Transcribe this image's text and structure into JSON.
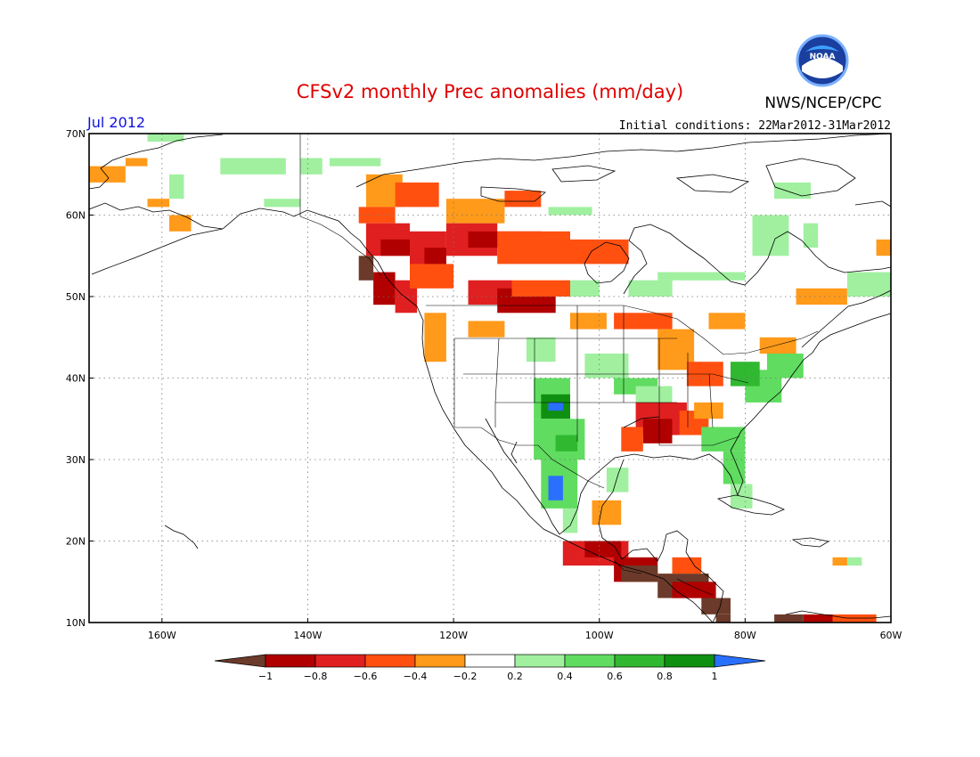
{
  "header": {
    "title": "CFSv2 monthly Prec anomalies (mm/day)",
    "org": "NWS/NCEP/CPC",
    "month": "Jul 2012",
    "initial_conditions": "Initial conditions: 22Mar2012-31Mar2012",
    "logo_text": "NOAA"
  },
  "map": {
    "lon_range": [
      -170,
      -60
    ],
    "lat_range": [
      10,
      70
    ],
    "lat_ticks": [
      {
        "value": 70,
        "label": "70N"
      },
      {
        "value": 60,
        "label": "60N"
      },
      {
        "value": 50,
        "label": "50N"
      },
      {
        "value": 40,
        "label": "40N"
      },
      {
        "value": 30,
        "label": "30N"
      },
      {
        "value": 20,
        "label": "20N"
      },
      {
        "value": 10,
        "label": "10N"
      }
    ],
    "lon_ticks": [
      {
        "value": -160,
        "label": "160W"
      },
      {
        "value": -140,
        "label": "140W"
      },
      {
        "value": -120,
        "label": "120W"
      },
      {
        "value": -100,
        "label": "100W"
      },
      {
        "value": -80,
        "label": "80W"
      },
      {
        "value": -60,
        "label": "60W"
      }
    ],
    "grid": "dotted",
    "land_color": "#ffffff",
    "ocean_color": "#ffffff"
  },
  "colorbar": {
    "labels": [
      "−1",
      "−0.8",
      "−0.6",
      "−0.4",
      "−0.2",
      "0.2",
      "0.4",
      "0.6",
      "0.8",
      "1"
    ],
    "colors": [
      "#6b3a2a",
      "#b00000",
      "#e02020",
      "#ff5010",
      "#ff9a1a",
      "#ffffff",
      "#a0f0a0",
      "#60dc60",
      "#30b830",
      "#109010",
      "#2a70ff"
    ]
  },
  "chart_data": {
    "type": "heatmap",
    "title": "CFSv2 monthly Prec anomalies (mm/day)",
    "units": "mm/day",
    "valid_month": "Jul 2012",
    "xlim": [
      -170,
      -60
    ],
    "ylim": [
      10,
      70
    ],
    "category_values": [
      -1.1,
      -0.9,
      -0.7,
      -0.5,
      -0.3,
      0.0,
      0.3,
      0.5,
      0.7,
      0.9,
      1.1
    ],
    "regions": [
      {
        "lon": [
          -170,
          -165
        ],
        "lat": [
          64,
          66
        ],
        "value": -0.3
      },
      {
        "lon": [
          -165,
          -162
        ],
        "lat": [
          66,
          67
        ],
        "value": -0.3
      },
      {
        "lon": [
          -159,
          -157
        ],
        "lat": [
          62,
          65
        ],
        "value": 0.3
      },
      {
        "lon": [
          -162,
          -157
        ],
        "lat": [
          69,
          70
        ],
        "value": 0.3
      },
      {
        "lon": [
          -152,
          -143
        ],
        "lat": [
          65,
          67
        ],
        "value": 0.3
      },
      {
        "lon": [
          -146,
          -141
        ],
        "lat": [
          61,
          62
        ],
        "value": 0.3
      },
      {
        "lon": [
          -162,
          -159
        ],
        "lat": [
          61,
          62
        ],
        "value": -0.3
      },
      {
        "lon": [
          -159,
          -156
        ],
        "lat": [
          58,
          60
        ],
        "value": -0.3
      },
      {
        "lon": [
          -141,
          -138
        ],
        "lat": [
          65,
          67
        ],
        "value": 0.3
      },
      {
        "lon": [
          -137,
          -130
        ],
        "lat": [
          66,
          67
        ],
        "value": 0.3
      },
      {
        "lon": [
          -132,
          -127
        ],
        "lat": [
          61,
          65
        ],
        "value": -0.3
      },
      {
        "lon": [
          -128,
          -122
        ],
        "lat": [
          61,
          64
        ],
        "value": -0.5
      },
      {
        "lon": [
          -133,
          -128
        ],
        "lat": [
          59,
          61
        ],
        "value": -0.5
      },
      {
        "lon": [
          -121,
          -113
        ],
        "lat": [
          59,
          62
        ],
        "value": -0.3
      },
      {
        "lon": [
          -113,
          -108
        ],
        "lat": [
          61,
          63
        ],
        "value": -0.5
      },
      {
        "lon": [
          -107,
          -101
        ],
        "lat": [
          60,
          61
        ],
        "value": 0.3
      },
      {
        "lon": [
          -132,
          -126
        ],
        "lat": [
          55,
          59
        ],
        "value": -0.7
      },
      {
        "lon": [
          -130,
          -126
        ],
        "lat": [
          55,
          57
        ],
        "value": -0.9
      },
      {
        "lon": [
          -126,
          -121
        ],
        "lat": [
          53,
          58
        ],
        "value": -0.7
      },
      {
        "lon": [
          -124,
          -121
        ],
        "lat": [
          53,
          56
        ],
        "value": -0.9
      },
      {
        "lon": [
          -121,
          -114
        ],
        "lat": [
          55,
          59
        ],
        "value": -0.7
      },
      {
        "lon": [
          -118,
          -108
        ],
        "lat": [
          56,
          58
        ],
        "value": -0.9
      },
      {
        "lon": [
          -114,
          -104
        ],
        "lat": [
          54,
          58
        ],
        "value": -0.5
      },
      {
        "lon": [
          -104,
          -96
        ],
        "lat": [
          54,
          57
        ],
        "value": -0.5
      },
      {
        "lon": [
          -133,
          -131
        ],
        "lat": [
          52,
          55
        ],
        "value": -1.1
      },
      {
        "lon": [
          -131,
          -128
        ],
        "lat": [
          49,
          53
        ],
        "value": -0.9
      },
      {
        "lon": [
          -128,
          -125
        ],
        "lat": [
          48,
          52
        ],
        "value": -0.7
      },
      {
        "lon": [
          -126,
          -120
        ],
        "lat": [
          51,
          54
        ],
        "value": -0.5
      },
      {
        "lon": [
          -118,
          -112
        ],
        "lat": [
          49,
          52
        ],
        "value": -0.7
      },
      {
        "lon": [
          -114,
          -106
        ],
        "lat": [
          48,
          51
        ],
        "value": -0.9
      },
      {
        "lon": [
          -112,
          -104
        ],
        "lat": [
          50,
          52
        ],
        "value": -0.5
      },
      {
        "lon": [
          -104,
          -100
        ],
        "lat": [
          50,
          52
        ],
        "value": 0.3
      },
      {
        "lon": [
          -96,
          -90
        ],
        "lat": [
          50,
          52
        ],
        "value": 0.3
      },
      {
        "lon": [
          -92,
          -80
        ],
        "lat": [
          52,
          53
        ],
        "value": 0.3
      },
      {
        "lon": [
          -79,
          -74
        ],
        "lat": [
          55,
          60
        ],
        "value": 0.3
      },
      {
        "lon": [
          -72,
          -70
        ],
        "lat": [
          56,
          59
        ],
        "value": 0.3
      },
      {
        "lon": [
          -73,
          -66
        ],
        "lat": [
          49,
          51
        ],
        "value": -0.3
      },
      {
        "lon": [
          -66,
          -60
        ],
        "lat": [
          50,
          53
        ],
        "value": 0.3
      },
      {
        "lon": [
          -62,
          -60
        ],
        "lat": [
          55,
          57
        ],
        "value": -0.3
      },
      {
        "lon": [
          -76,
          -71
        ],
        "lat": [
          62,
          64
        ],
        "value": 0.3
      },
      {
        "lon": [
          -124,
          -121
        ],
        "lat": [
          42,
          48
        ],
        "value": -0.3
      },
      {
        "lon": [
          -118,
          -113
        ],
        "lat": [
          45,
          47
        ],
        "value": -0.3
      },
      {
        "lon": [
          -104,
          -99
        ],
        "lat": [
          46,
          48
        ],
        "value": -0.3
      },
      {
        "lon": [
          -98,
          -90
        ],
        "lat": [
          46,
          48
        ],
        "value": -0.5
      },
      {
        "lon": [
          -92,
          -87
        ],
        "lat": [
          41,
          46
        ],
        "value": -0.3
      },
      {
        "lon": [
          -88,
          -83
        ],
        "lat": [
          39,
          42
        ],
        "value": -0.5
      },
      {
        "lon": [
          -85,
          -80
        ],
        "lat": [
          46,
          48
        ],
        "value": -0.3
      },
      {
        "lon": [
          -78,
          -73
        ],
        "lat": [
          43,
          45
        ],
        "value": -0.3
      },
      {
        "lon": [
          -110,
          -106
        ],
        "lat": [
          42,
          45
        ],
        "value": 0.3
      },
      {
        "lon": [
          -102,
          -96
        ],
        "lat": [
          40,
          43
        ],
        "value": 0.3
      },
      {
        "lon": [
          -98,
          -92
        ],
        "lat": [
          38,
          40
        ],
        "value": 0.5
      },
      {
        "lon": [
          -95,
          -90
        ],
        "lat": [
          36,
          39
        ],
        "value": 0.3
      },
      {
        "lon": [
          -109,
          -104
        ],
        "lat": [
          35,
          40
        ],
        "value": 0.5
      },
      {
        "lon": [
          -108,
          -104
        ],
        "lat": [
          35,
          38
        ],
        "value": 0.9
      },
      {
        "lon": [
          -107,
          -105
        ],
        "lat": [
          36,
          37
        ],
        "value": 1.1
      },
      {
        "lon": [
          -109,
          -102
        ],
        "lat": [
          30,
          35
        ],
        "value": 0.5
      },
      {
        "lon": [
          -106,
          -103
        ],
        "lat": [
          31,
          33
        ],
        "value": 0.7
      },
      {
        "lon": [
          -108,
          -103
        ],
        "lat": [
          24,
          30
        ],
        "value": 0.5
      },
      {
        "lon": [
          -107,
          -105
        ],
        "lat": [
          25,
          28
        ],
        "value": 1.1
      },
      {
        "lon": [
          -105,
          -103
        ],
        "lat": [
          21,
          24
        ],
        "value": 0.3
      },
      {
        "lon": [
          -95,
          -88
        ],
        "lat": [
          33,
          37
        ],
        "value": -0.7
      },
      {
        "lon": [
          -94,
          -90
        ],
        "lat": [
          32,
          35
        ],
        "value": -0.9
      },
      {
        "lon": [
          -97,
          -94
        ],
        "lat": [
          31,
          34
        ],
        "value": -0.5
      },
      {
        "lon": [
          -89,
          -85
        ],
        "lat": [
          33,
          36
        ],
        "value": -0.5
      },
      {
        "lon": [
          -87,
          -83
        ],
        "lat": [
          35,
          37
        ],
        "value": -0.3
      },
      {
        "lon": [
          -86,
          -80
        ],
        "lat": [
          31,
          34
        ],
        "value": 0.5
      },
      {
        "lon": [
          -83,
          -80
        ],
        "lat": [
          27,
          31
        ],
        "value": 0.5
      },
      {
        "lon": [
          -82,
          -79
        ],
        "lat": [
          24,
          27
        ],
        "value": 0.3
      },
      {
        "lon": [
          -80,
          -75
        ],
        "lat": [
          37,
          41
        ],
        "value": 0.5
      },
      {
        "lon": [
          -82,
          -78
        ],
        "lat": [
          39,
          42
        ],
        "value": 0.7
      },
      {
        "lon": [
          -77,
          -72
        ],
        "lat": [
          40,
          43
        ],
        "value": 0.5
      },
      {
        "lon": [
          -101,
          -97
        ],
        "lat": [
          22,
          25
        ],
        "value": -0.3
      },
      {
        "lon": [
          -99,
          -96
        ],
        "lat": [
          26,
          29
        ],
        "value": 0.3
      },
      {
        "lon": [
          -105,
          -96
        ],
        "lat": [
          17,
          20
        ],
        "value": -0.7
      },
      {
        "lon": [
          -102,
          -97
        ],
        "lat": [
          18,
          20
        ],
        "value": -0.9
      },
      {
        "lon": [
          -98,
          -92
        ],
        "lat": [
          15,
          18
        ],
        "value": -0.9
      },
      {
        "lon": [
          -97,
          -92
        ],
        "lat": [
          15,
          17
        ],
        "value": -1.1
      },
      {
        "lon": [
          -92,
          -85
        ],
        "lat": [
          13,
          16
        ],
        "value": -1.1
      },
      {
        "lon": [
          -90,
          -84
        ],
        "lat": [
          13,
          15
        ],
        "value": -0.9
      },
      {
        "lon": [
          -86,
          -82
        ],
        "lat": [
          11,
          13
        ],
        "value": -1.1
      },
      {
        "lon": [
          -84,
          -82
        ],
        "lat": [
          10,
          11
        ],
        "value": -1.1
      },
      {
        "lon": [
          -90,
          -86
        ],
        "lat": [
          16,
          18
        ],
        "value": -0.5
      },
      {
        "lon": [
          -76,
          -72
        ],
        "lat": [
          10,
          11
        ],
        "value": -1.1
      },
      {
        "lon": [
          -72,
          -68
        ],
        "lat": [
          10,
          11
        ],
        "value": -0.9
      },
      {
        "lon": [
          -68,
          -62
        ],
        "lat": [
          10,
          11
        ],
        "value": -0.5
      },
      {
        "lon": [
          -66,
          -64
        ],
        "lat": [
          17,
          18
        ],
        "value": 0.3
      },
      {
        "lon": [
          -68,
          -66
        ],
        "lat": [
          17,
          18
        ],
        "value": -0.3
      }
    ]
  }
}
